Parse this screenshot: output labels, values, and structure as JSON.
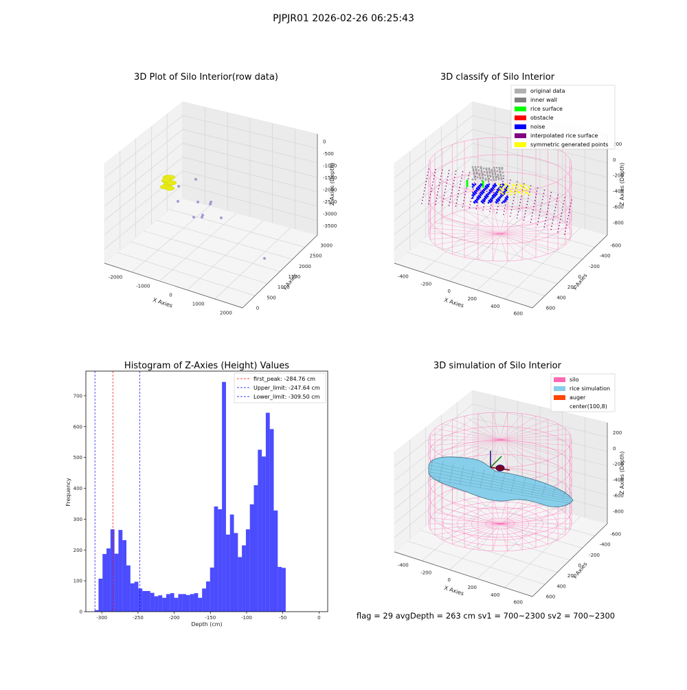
{
  "header": {
    "title": "PJPJR01 2026-02-26 06:25:43"
  },
  "status_line": "flag = 29  avgDepth = 263 cm  sv1 = 700~2300  sv2 = 700~2300",
  "colors": {
    "raw_points": "#9f8fcf",
    "raw_yellow": "#e7ea18",
    "silo": "#ff69b4",
    "rice_sim": "#87ceeb",
    "auger": "#ff4500",
    "hist": "#0000ff"
  },
  "chart_data": [
    {
      "type": "scatter3d",
      "title": "3D Plot of Silo Interior(row data)",
      "xlabel": "X Axies",
      "ylabel": "Y Axies",
      "zlabel": "Z Axies (Depth)",
      "x_ticks": [
        "-2000",
        "-1000",
        "0",
        "1000",
        "2000"
      ],
      "y_ticks": [
        "0",
        "500",
        "1000",
        "1500",
        "2000",
        "2500",
        "3000"
      ],
      "z_ticks": [
        "0",
        "-500",
        "-1000",
        "-1500",
        "-2000",
        "-2500",
        "-3000",
        "-3500"
      ],
      "xlim": [
        -2300,
        2300
      ],
      "ylim": [
        -100,
        3300
      ],
      "zlim": [
        -3800,
        200
      ],
      "grid": true
    },
    {
      "type": "scatter3d",
      "title": "3D classify of Silo Interior",
      "xlabel": "X Axies",
      "ylabel": "Y Axies",
      "zlabel": "Z Axies (Depth)",
      "x_ticks": [
        "-400",
        "-200",
        "0",
        "200",
        "400",
        "600"
      ],
      "y_ticks": [
        "600",
        "400",
        "200",
        "0",
        "-200",
        "-400",
        "-600"
      ],
      "z_ticks": [
        "200",
        "0",
        "-200",
        "-400",
        "-600",
        "-800"
      ],
      "legend_position": "top-right",
      "legend": [
        {
          "label": "original data",
          "color": "#b0b0b0"
        },
        {
          "label": "inner wall",
          "color": "#808080"
        },
        {
          "label": "rice surface",
          "color": "#00ff00"
        },
        {
          "label": "obstacle",
          "color": "#ff0000"
        },
        {
          "label": "noise",
          "color": "#0000ff"
        },
        {
          "label": "interpolated rice surface",
          "color": "#800080"
        },
        {
          "label": "symmetric generated points",
          "color": "#ffff00"
        }
      ],
      "grid": true
    },
    {
      "type": "bar",
      "title": "Histogram of Z-Axies (Height) Values",
      "xlabel": "Depth (cm)",
      "ylabel": "Frequency",
      "xlim": [
        -322,
        12
      ],
      "ylim": [
        0,
        780
      ],
      "x_ticks": [
        -300,
        -250,
        -200,
        -150,
        -100,
        -50,
        0
      ],
      "y_ticks": [
        0,
        100,
        200,
        300,
        400,
        500,
        600,
        700
      ],
      "bin_start": -310,
      "bin_width": 5.5,
      "values": [
        5,
        107,
        187,
        205,
        267,
        188,
        265,
        232,
        150,
        92,
        97,
        75,
        67,
        67,
        61,
        50,
        53,
        45,
        57,
        60,
        45,
        57,
        57,
        54,
        57,
        60,
        45,
        75,
        98,
        143,
        341,
        332,
        745,
        250,
        315,
        255,
        177,
        215,
        267,
        348,
        410,
        525,
        503,
        645,
        592,
        328,
        145,
        142
      ],
      "lines": [
        {
          "label": "first_peak: -284.76 cm",
          "x": -284.76,
          "color": "#ff0000"
        },
        {
          "label": "Upper_limit: -247.64 cm",
          "x": -247.64,
          "color": "#0000ff"
        },
        {
          "label": "Lower_limit: -309.50 cm",
          "x": -309.5,
          "color": "#0000ff"
        }
      ],
      "legend_position": "top-right"
    },
    {
      "type": "surface3d",
      "title": "3D simulation of Silo Interior",
      "xlabel": "X Axies",
      "ylabel": "Y Axies",
      "zlabel": "Z Axies (Depth)",
      "x_ticks": [
        "-400",
        "-200",
        "0",
        "200",
        "400",
        "600"
      ],
      "y_ticks": [
        "600",
        "400",
        "200",
        "0",
        "-200",
        "-400",
        "-600"
      ],
      "z_ticks": [
        "200",
        "0",
        "-200",
        "-400",
        "-600",
        "-800"
      ],
      "legend_position": "top-right",
      "legend": [
        {
          "label": "silo",
          "color": "#ff69b4"
        },
        {
          "label": "rice simulation",
          "color": "#87ceeb"
        },
        {
          "label": "auger",
          "color": "#ff4500"
        },
        {
          "label": "center(100,8)",
          "color": "#ffffff"
        }
      ],
      "grid": true
    }
  ]
}
